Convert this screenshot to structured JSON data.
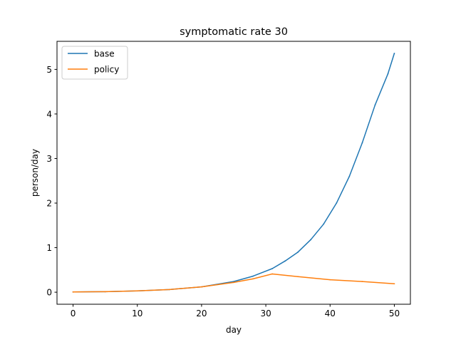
{
  "chart_data": {
    "type": "line",
    "title": "symptomatic rate 30",
    "xlabel": "day",
    "ylabel": "person/day",
    "xlim": [
      -2.5,
      52.5
    ],
    "ylim": [
      -0.27,
      5.63
    ],
    "xticks": [
      0,
      10,
      20,
      30,
      40,
      50
    ],
    "yticks": [
      0,
      1,
      2,
      3,
      4,
      5
    ],
    "grid": false,
    "legend_position": "upper left",
    "series": [
      {
        "name": "base",
        "color": "#1f77b4",
        "x": [
          0,
          5,
          10,
          15,
          20,
          25,
          28,
          31,
          33,
          35,
          37,
          39,
          41,
          43,
          45,
          47,
          49,
          50
        ],
        "y": [
          0.005,
          0.012,
          0.03,
          0.06,
          0.12,
          0.24,
          0.36,
          0.53,
          0.7,
          0.9,
          1.18,
          1.53,
          2.0,
          2.6,
          3.35,
          4.2,
          4.9,
          5.36
        ]
      },
      {
        "name": "policy",
        "color": "#ff7f0e",
        "x": [
          0,
          5,
          10,
          15,
          20,
          25,
          28,
          31,
          35,
          40,
          45,
          50
        ],
        "y": [
          0.005,
          0.012,
          0.03,
          0.06,
          0.12,
          0.22,
          0.3,
          0.41,
          0.35,
          0.28,
          0.24,
          0.19
        ]
      }
    ]
  }
}
